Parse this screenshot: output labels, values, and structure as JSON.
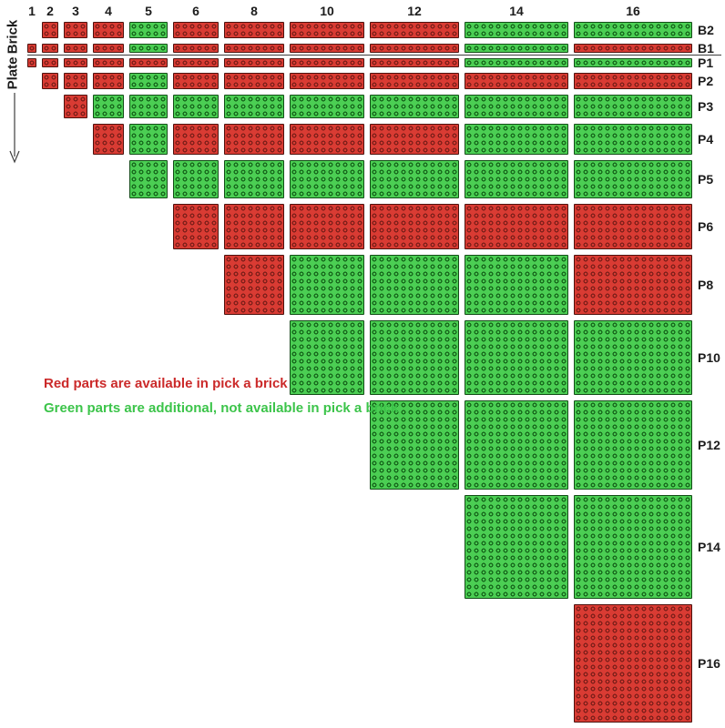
{
  "matrix": {
    "columns": [
      "1",
      "2",
      "3",
      "4",
      "5",
      "6",
      "8",
      "10",
      "12",
      "14",
      "16"
    ],
    "column_studs": [
      1,
      2,
      3,
      4,
      5,
      6,
      8,
      10,
      12,
      14,
      16
    ],
    "rows": [
      {
        "label": "B2",
        "studs_deep": 2,
        "cells": [
          null,
          "red",
          "red",
          "red",
          "green",
          "red",
          "red",
          "red",
          "red",
          "green",
          "green"
        ]
      },
      {
        "label": "B1",
        "studs_deep": 1,
        "cells": [
          "red",
          "red",
          "red",
          "red",
          "green",
          "red",
          "red",
          "red",
          "red",
          "green",
          "red"
        ]
      },
      {
        "label": "P1",
        "studs_deep": 1,
        "cells": [
          "red",
          "red",
          "red",
          "red",
          "red",
          "red",
          "red",
          "red",
          "red",
          "green",
          "green"
        ]
      },
      {
        "label": "P2",
        "studs_deep": 2,
        "cells": [
          null,
          "red",
          "red",
          "red",
          "green",
          "red",
          "red",
          "red",
          "red",
          "red",
          "red"
        ]
      },
      {
        "label": "P3",
        "studs_deep": 3,
        "cells": [
          null,
          null,
          "red",
          "green",
          "green",
          "green",
          "green",
          "green",
          "green",
          "green",
          "green"
        ]
      },
      {
        "label": "P4",
        "studs_deep": 4,
        "cells": [
          null,
          null,
          null,
          "red",
          "green",
          "red",
          "red",
          "red",
          "red",
          "green",
          "green"
        ]
      },
      {
        "label": "P5",
        "studs_deep": 5,
        "cells": [
          null,
          null,
          null,
          null,
          "green",
          "green",
          "green",
          "green",
          "green",
          "green",
          "green"
        ]
      },
      {
        "label": "P6",
        "studs_deep": 6,
        "cells": [
          null,
          null,
          null,
          null,
          null,
          "red",
          "red",
          "red",
          "red",
          "red",
          "red"
        ]
      },
      {
        "label": "P8",
        "studs_deep": 8,
        "cells": [
          null,
          null,
          null,
          null,
          null,
          null,
          "red",
          "green",
          "green",
          "green",
          "red"
        ]
      },
      {
        "label": "P10",
        "studs_deep": 10,
        "cells": [
          null,
          null,
          null,
          null,
          null,
          null,
          null,
          "green",
          "green",
          "green",
          "green"
        ]
      },
      {
        "label": "P12",
        "studs_deep": 12,
        "cells": [
          null,
          null,
          null,
          null,
          null,
          null,
          null,
          null,
          "green",
          "green",
          "green"
        ]
      },
      {
        "label": "P14",
        "studs_deep": 14,
        "cells": [
          null,
          null,
          null,
          null,
          null,
          null,
          null,
          null,
          null,
          "green",
          "green"
        ]
      },
      {
        "label": "P16",
        "studs_deep": 16,
        "cells": [
          null,
          null,
          null,
          null,
          null,
          null,
          null,
          null,
          null,
          null,
          "red"
        ]
      }
    ],
    "divider_after_row": "B1"
  },
  "side_labels": {
    "brick": "Brick",
    "plate": "Plate"
  },
  "legend": {
    "red_text": "Red parts are available in pick a brick",
    "green_text": "Green parts are additional, not available in pick a brick",
    "red_color": "#cb2a2a",
    "green_color": "#3cc44a"
  },
  "colors": {
    "red_fill": "#d93b33",
    "red_border": "#4e120e",
    "red_stud": "#84211b",
    "green_fill": "#4bce53",
    "green_border": "#134d17",
    "green_stud": "#1a6e1f"
  }
}
